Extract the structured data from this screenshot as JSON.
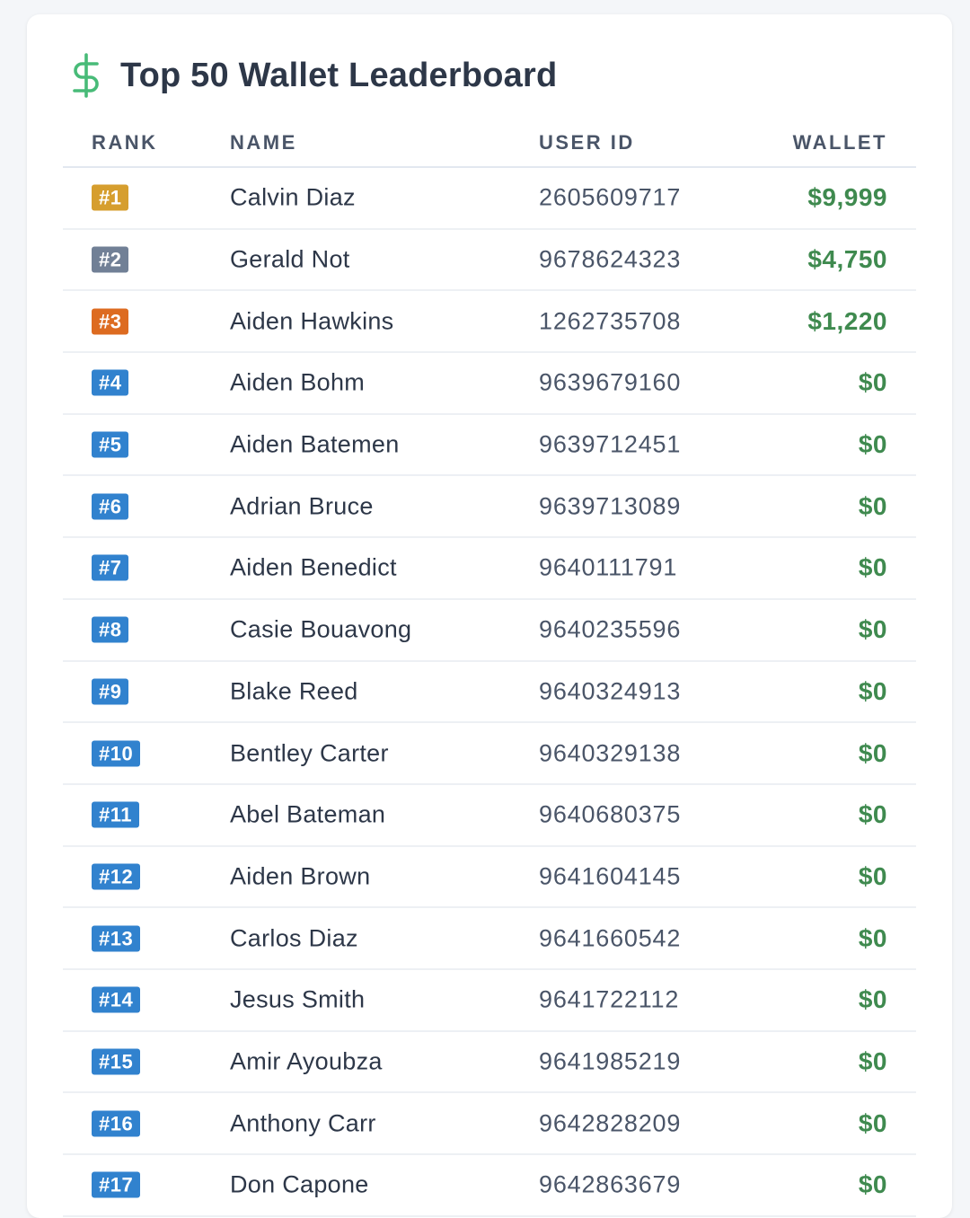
{
  "header": {
    "title": "Top 50 Wallet Leaderboard",
    "icon": "dollar-icon",
    "icon_color": "#48bb78"
  },
  "columns": {
    "rank": "RANK",
    "name": "NAME",
    "user_id": "USER ID",
    "wallet": "WALLET"
  },
  "colors": {
    "gold": "#d69e2e",
    "silver": "#718096",
    "bronze": "#dd6b20",
    "default": "#3182ce",
    "wallet_text": "#3f8a4f"
  },
  "rows": [
    {
      "rank": "#1",
      "tier": "gold",
      "name": "Calvin Diaz",
      "user_id": "2605609717",
      "wallet": "$9,999"
    },
    {
      "rank": "#2",
      "tier": "silver",
      "name": "Gerald Not",
      "user_id": "9678624323",
      "wallet": "$4,750"
    },
    {
      "rank": "#3",
      "tier": "bronze",
      "name": "Aiden Hawkins",
      "user_id": "1262735708",
      "wallet": "$1,220"
    },
    {
      "rank": "#4",
      "tier": "default",
      "name": "Aiden Bohm",
      "user_id": "9639679160",
      "wallet": "$0"
    },
    {
      "rank": "#5",
      "tier": "default",
      "name": "Aiden Batemen",
      "user_id": "9639712451",
      "wallet": "$0"
    },
    {
      "rank": "#6",
      "tier": "default",
      "name": "Adrian Bruce",
      "user_id": "9639713089",
      "wallet": "$0"
    },
    {
      "rank": "#7",
      "tier": "default",
      "name": "Aiden Benedict",
      "user_id": "9640111791",
      "wallet": "$0"
    },
    {
      "rank": "#8",
      "tier": "default",
      "name": "Casie Bouavong",
      "user_id": "9640235596",
      "wallet": "$0"
    },
    {
      "rank": "#9",
      "tier": "default",
      "name": "Blake Reed",
      "user_id": "9640324913",
      "wallet": "$0"
    },
    {
      "rank": "#10",
      "tier": "default",
      "name": "Bentley Carter",
      "user_id": "9640329138",
      "wallet": "$0"
    },
    {
      "rank": "#11",
      "tier": "default",
      "name": "Abel Bateman",
      "user_id": "9640680375",
      "wallet": "$0"
    },
    {
      "rank": "#12",
      "tier": "default",
      "name": "Aiden Brown",
      "user_id": "9641604145",
      "wallet": "$0"
    },
    {
      "rank": "#13",
      "tier": "default",
      "name": "Carlos Diaz",
      "user_id": "9641660542",
      "wallet": "$0"
    },
    {
      "rank": "#14",
      "tier": "default",
      "name": "Jesus Smith",
      "user_id": "9641722112",
      "wallet": "$0"
    },
    {
      "rank": "#15",
      "tier": "default",
      "name": "Amir Ayoubza",
      "user_id": "9641985219",
      "wallet": "$0"
    },
    {
      "rank": "#16",
      "tier": "default",
      "name": "Anthony Carr",
      "user_id": "9642828209",
      "wallet": "$0"
    },
    {
      "rank": "#17",
      "tier": "default",
      "name": "Don Capone",
      "user_id": "9642863679",
      "wallet": "$0"
    }
  ]
}
